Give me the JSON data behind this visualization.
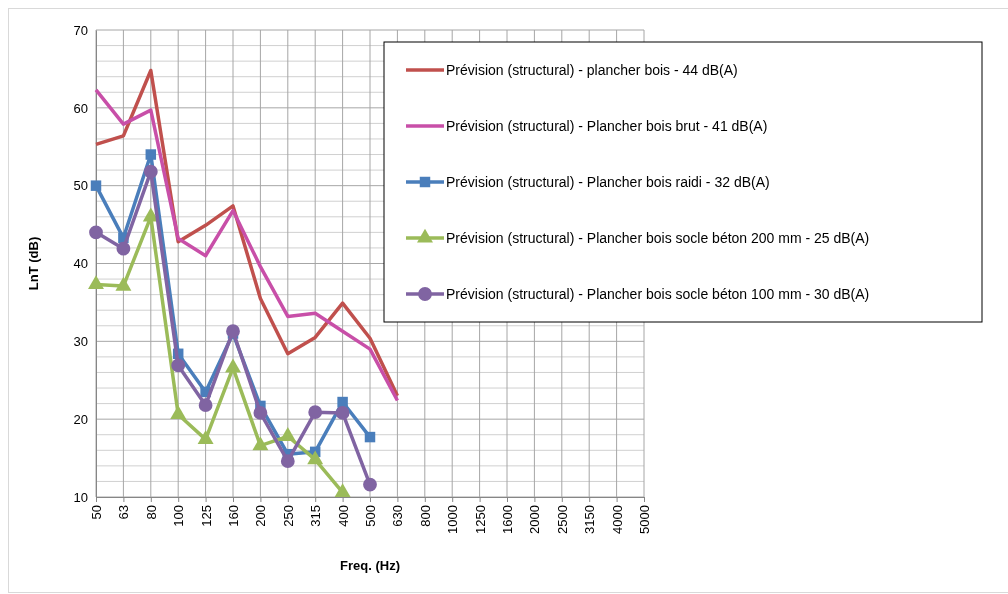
{
  "chart_data": {
    "type": "line",
    "xlabel": "Freq. (Hz)",
    "ylabel": "LnT (dB)",
    "categories": [
      "50",
      "63",
      "80",
      "100",
      "125",
      "160",
      "200",
      "250",
      "315",
      "400",
      "500",
      "630",
      "800",
      "1000",
      "1250",
      "1600",
      "2000",
      "2500",
      "3150",
      "4000",
      "5000"
    ],
    "ylim": [
      10,
      70
    ],
    "yticks": [
      10,
      {
        "value": 12,
        "label": null
      },
      {
        "value": 14,
        "label": null
      },
      {
        "value": 16,
        "label": null
      },
      {
        "value": 18,
        "label": null
      },
      20,
      {
        "value": 22,
        "label": null
      },
      {
        "value": 24,
        "label": null
      },
      {
        "value": 26,
        "label": null
      },
      {
        "value": 28,
        "label": null
      },
      30,
      {
        "value": 32,
        "label": null
      },
      {
        "value": 34,
        "label": null
      },
      {
        "value": 36,
        "label": null
      },
      {
        "value": 38,
        "label": null
      },
      40,
      {
        "value": 42,
        "label": null
      },
      {
        "value": 44,
        "label": null
      },
      {
        "value": 46,
        "label": null
      },
      {
        "value": 48,
        "label": null
      },
      50,
      {
        "value": 52,
        "label": null
      },
      {
        "value": 54,
        "label": null
      },
      {
        "value": 56,
        "label": null
      },
      {
        "value": 58,
        "label": null
      },
      60,
      {
        "value": 62,
        "label": null
      },
      {
        "value": 64,
        "label": null
      },
      {
        "value": 66,
        "label": null
      },
      {
        "value": 68,
        "label": null
      },
      70
    ],
    "grid": true,
    "legend": "top right",
    "series": [
      {
        "name": "Prévision (structural) - plancher bois - 44 dB(A)",
        "color": "#c0504d",
        "marker": "none",
        "values": [
          55.3,
          56.4,
          64.8,
          42.8,
          44.9,
          47.4,
          35.5,
          28.4,
          30.5,
          34.9,
          30.4,
          23.0,
          null,
          null,
          null,
          null,
          null,
          null,
          null,
          null,
          null
        ]
      },
      {
        "name": "Prévision (structural) - Plancher bois brut - 41 dB(A)",
        "color": "#c84fa8",
        "marker": "none",
        "values": [
          62.3,
          57.9,
          59.7,
          43.2,
          41.0,
          46.8,
          39.6,
          33.2,
          33.6,
          31.3,
          29.0,
          22.4,
          null,
          null,
          null,
          null,
          null,
          null,
          null,
          null,
          null
        ]
      },
      {
        "name": "Prévision (structural) - Plancher bois raidi - 32 dB(A)",
        "color": "#4a7ebb",
        "marker": "square",
        "values": [
          50.0,
          43.3,
          54.0,
          28.4,
          23.5,
          31.0,
          21.7,
          15.5,
          15.8,
          22.2,
          17.7,
          null,
          null,
          null,
          null,
          null,
          null,
          null,
          null,
          null,
          null
        ]
      },
      {
        "name": "Prévision (structural) - Plancher bois socle béton 200 mm - 25 dB(A)",
        "color": "#9bbb59",
        "marker": "triangle",
        "values": [
          37.3,
          37.1,
          46.0,
          20.6,
          17.4,
          26.6,
          16.6,
          17.8,
          14.8,
          10.6,
          null,
          null,
          null,
          null,
          null,
          null,
          null,
          null,
          null,
          null,
          null
        ]
      },
      {
        "name": "Prévision (structural) - Plancher bois socle béton 100 mm - 30 dB(A)",
        "color": "#8064a2",
        "marker": "circle",
        "values": [
          44.0,
          41.9,
          51.8,
          26.9,
          21.8,
          31.3,
          20.8,
          14.6,
          20.9,
          20.8,
          11.6,
          null,
          null,
          null,
          null,
          null,
          null,
          null,
          null,
          null,
          null
        ]
      }
    ]
  }
}
